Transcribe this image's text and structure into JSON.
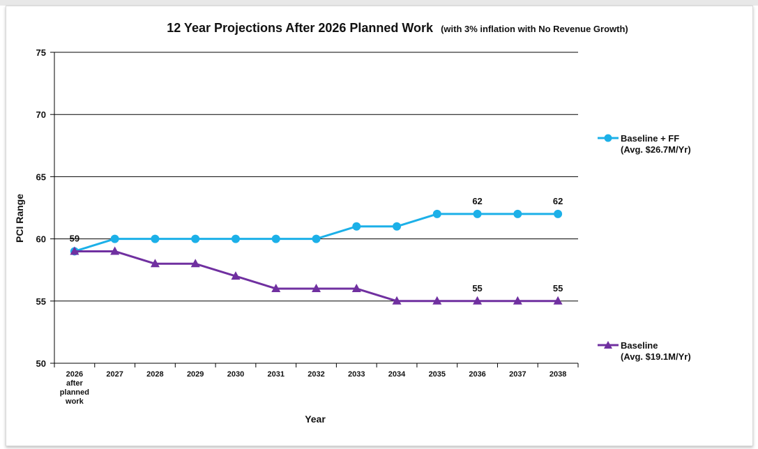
{
  "chart_data": {
    "type": "line",
    "title": "12 Year Projections After 2026 Planned Work",
    "subtitle": "(with 3% inflation with No Revenue Growth)",
    "xlabel": "Year",
    "ylabel": "PCI Range",
    "ylim": [
      50,
      75
    ],
    "yticks": [
      50,
      55,
      60,
      65,
      70,
      75
    ],
    "categories": [
      [
        "2026",
        "after",
        "planned",
        "work"
      ],
      [
        "2027"
      ],
      [
        "2028"
      ],
      [
        "2029"
      ],
      [
        "2030"
      ],
      [
        "2031"
      ],
      [
        "2032"
      ],
      [
        "2033"
      ],
      [
        "2034"
      ],
      [
        "2035"
      ],
      [
        "2036"
      ],
      [
        "2037"
      ],
      [
        "2038"
      ]
    ],
    "grid": "horizontal",
    "legend_position": "right",
    "series": [
      {
        "name": "Baseline + FF",
        "legend_lines": [
          "Baseline + FF",
          "(Avg. $26.7M/Yr)"
        ],
        "color": "#1cb0e8",
        "marker": "circle",
        "values": [
          59,
          60,
          60,
          60,
          60,
          60,
          60,
          61,
          61,
          62,
          62,
          62,
          62
        ]
      },
      {
        "name": "Baseline",
        "legend_lines": [
          "Baseline",
          "(Avg. $19.1M/Yr)"
        ],
        "color": "#7030a0",
        "marker": "triangle",
        "values": [
          59,
          59,
          58,
          58,
          57,
          56,
          56,
          56,
          55,
          55,
          55,
          55,
          55
        ]
      }
    ],
    "annotations": [
      {
        "text": "59",
        "series": 0,
        "index": 0
      },
      {
        "text": "62",
        "series": 0,
        "index": 10
      },
      {
        "text": "62",
        "series": 0,
        "index": 12
      },
      {
        "text": "55",
        "series": 1,
        "index": 10
      },
      {
        "text": "55",
        "series": 1,
        "index": 12
      }
    ]
  }
}
